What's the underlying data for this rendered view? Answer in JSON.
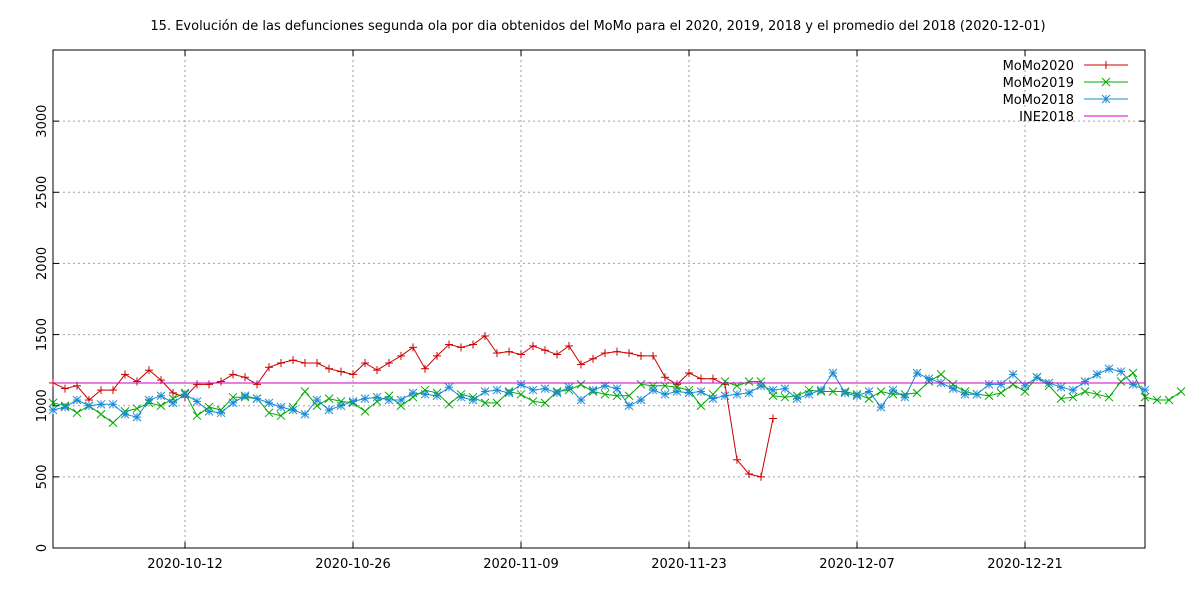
{
  "chart_data": {
    "type": "line",
    "title": "15. Evolución de las defunciones segunda ola por dia obtenidos del MoMo para el 2020, 2019, 2018 y el promedio del 2018 (2020-12-01)",
    "xlabel": "",
    "ylabel": "",
    "x_range": [
      "2020-10-01",
      "2020-12-31"
    ],
    "ylim": [
      0,
      3500
    ],
    "x_ticks": [
      {
        "date": "2020-10-12",
        "label": "2020-10-12"
      },
      {
        "date": "2020-10-26",
        "label": "2020-10-26"
      },
      {
        "date": "2020-11-09",
        "label": "2020-11-09"
      },
      {
        "date": "2020-11-23",
        "label": "2020-11-23"
      },
      {
        "date": "2020-12-07",
        "label": "2020-12-07"
      },
      {
        "date": "2020-12-21",
        "label": "2020-12-21"
      }
    ],
    "y_ticks": [
      0,
      500,
      1000,
      1500,
      2000,
      2500,
      3000
    ],
    "grid": true,
    "legend_position": "top-right",
    "series": [
      {
        "name": "MoMo2020",
        "color": "#cc0000",
        "marker": "plus",
        "start_date": "2020-10-01",
        "values": [
          1160,
          1120,
          1140,
          1040,
          1110,
          1110,
          1220,
          1170,
          1250,
          1180,
          1090,
          1060,
          1150,
          1150,
          1170,
          1220,
          1200,
          1150,
          1270,
          1300,
          1320,
          1300,
          1300,
          1260,
          1240,
          1220,
          1300,
          1250,
          1300,
          1350,
          1410,
          1260,
          1350,
          1430,
          1410,
          1430,
          1490,
          1370,
          1380,
          1360,
          1420,
          1390,
          1360,
          1420,
          1290,
          1330,
          1370,
          1380,
          1370,
          1350,
          1350,
          1200,
          1150,
          1230,
          1190,
          1190,
          1150,
          620,
          520,
          500,
          910
        ]
      },
      {
        "name": "MoMo2019",
        "color": "#00aa00",
        "marker": "cross",
        "start_date": "2020-10-01",
        "values": [
          1020,
          1000,
          950,
          1000,
          940,
          880,
          960,
          980,
          1020,
          1000,
          1050,
          1090,
          930,
          990,
          970,
          1060,
          1060,
          1050,
          950,
          930,
          990,
          1100,
          1000,
          1050,
          1030,
          1020,
          960,
          1030,
          1070,
          1000,
          1060,
          1110,
          1090,
          1010,
          1080,
          1060,
          1020,
          1020,
          1100,
          1080,
          1030,
          1020,
          1100,
          1110,
          1150,
          1100,
          1080,
          1070,
          1070,
          1150,
          1140,
          1140,
          1130,
          1110,
          1000,
          1080,
          1170,
          1140,
          1170,
          1170,
          1070,
          1060,
          1070,
          1110,
          1100,
          1100,
          1100,
          1080,
          1050,
          1100,
          1080,
          1080,
          1090,
          1170,
          1220,
          1150,
          1100,
          1080,
          1070,
          1090,
          1150,
          1100,
          1200,
          1140,
          1050,
          1060,
          1100,
          1080,
          1060,
          1170,
          1230,
          1060,
          1040,
          1040,
          1100
        ]
      },
      {
        "name": "MoMo2018",
        "color": "#1a8ad4",
        "marker": "star",
        "start_date": "2020-10-01",
        "values": [
          970,
          990,
          1040,
          1000,
          1010,
          1010,
          940,
          920,
          1040,
          1070,
          1020,
          1080,
          1030,
          960,
          950,
          1020,
          1070,
          1050,
          1020,
          990,
          970,
          940,
          1040,
          970,
          1000,
          1030,
          1050,
          1060,
          1040,
          1040,
          1090,
          1080,
          1070,
          1130,
          1060,
          1040,
          1100,
          1110,
          1090,
          1150,
          1110,
          1120,
          1090,
          1130,
          1040,
          1110,
          1140,
          1120,
          1000,
          1040,
          1110,
          1080,
          1100,
          1090,
          1100,
          1050,
          1070,
          1080,
          1090,
          1140,
          1110,
          1120,
          1050,
          1080,
          1110,
          1230,
          1090,
          1070,
          1100,
          990,
          1110,
          1060,
          1230,
          1190,
          1160,
          1120,
          1080,
          1080,
          1150,
          1150,
          1220,
          1140,
          1200,
          1160,
          1130,
          1110,
          1170,
          1220,
          1260,
          1240,
          1150,
          1110
        ]
      },
      {
        "name": "INE2018",
        "color": "#cc00cc",
        "marker": "none",
        "constant_value": 1160
      }
    ]
  }
}
